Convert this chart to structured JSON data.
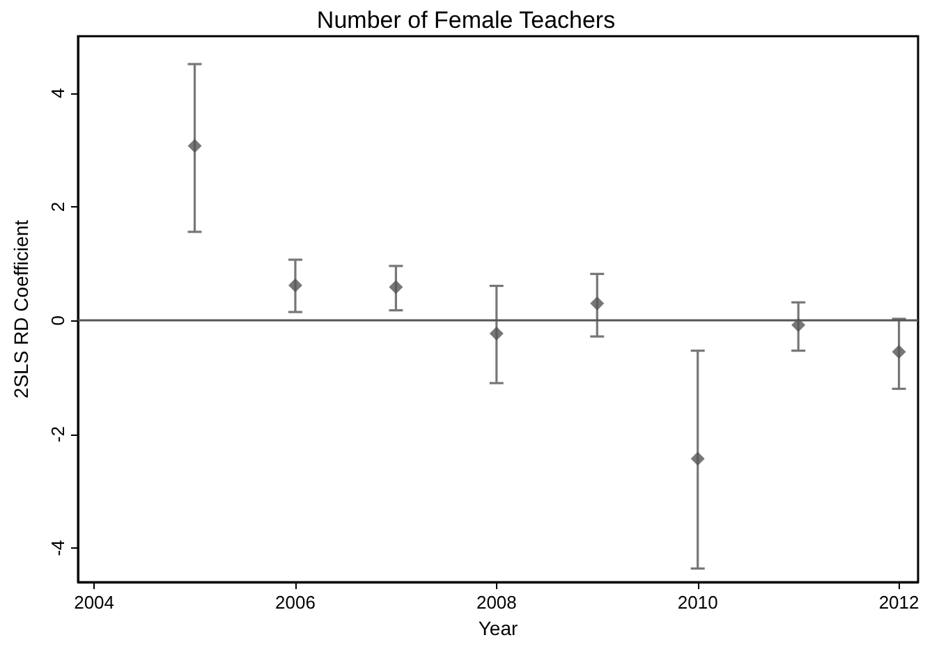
{
  "chart_data": {
    "type": "scatter",
    "title": "Number of Female Teachers",
    "xlabel": "Year",
    "ylabel": "2SLS RD Coefficient",
    "x": [
      2005,
      2006,
      2007,
      2008,
      2009,
      2010,
      2011,
      2012
    ],
    "values": [
      3.07,
      0.62,
      0.59,
      -0.23,
      0.3,
      -2.43,
      -0.08,
      -0.55
    ],
    "errors": [
      [
        1.56,
        4.51
      ],
      [
        0.15,
        1.07
      ],
      [
        0.18,
        0.96
      ],
      [
        -1.1,
        0.61
      ],
      [
        -0.28,
        0.82
      ],
      [
        -4.36,
        -0.53
      ],
      [
        -0.53,
        0.32
      ],
      [
        -1.2,
        0.03
      ]
    ],
    "color": "#555555",
    "marker": "diamond",
    "xlim": [
      2003.84,
      2012.19
    ],
    "xticks": [
      2004,
      2006,
      2008,
      2010,
      2012
    ],
    "ylim": [
      -4.6,
      5.0
    ],
    "yticks": [
      -4,
      -2,
      0,
      2,
      4
    ],
    "ref_lines": [
      {
        "axis": "y",
        "value": 0,
        "color": "#555555"
      }
    ],
    "grid": false,
    "legend": false
  }
}
